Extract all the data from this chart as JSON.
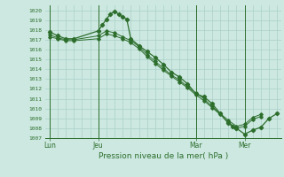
{
  "title": "Pression niveau de la mer( hPa )",
  "ylim": [
    1007,
    1020.5
  ],
  "yticks": [
    1007,
    1008,
    1009,
    1010,
    1011,
    1012,
    1013,
    1014,
    1015,
    1016,
    1017,
    1018,
    1019,
    1020
  ],
  "xtick_labels": [
    "Lun",
    "Jeu",
    "Mar",
    "Mer"
  ],
  "xtick_positions": [
    0,
    12,
    36,
    48
  ],
  "xlim": [
    -1,
    57
  ],
  "bg_color": "#cce8e0",
  "grid_color": "#aad0c8",
  "line_color": "#2d6e2d",
  "series1_x": [
    0,
    2,
    4,
    6,
    12,
    13,
    14,
    15,
    16,
    17,
    18,
    19,
    20,
    22,
    24,
    26,
    28,
    30,
    32,
    34,
    36,
    38,
    40,
    42,
    44,
    45,
    46,
    48,
    50,
    52,
    54,
    56
  ],
  "series1_y": [
    1017.8,
    1017.4,
    1017.1,
    1017.1,
    1017.9,
    1018.5,
    1019.1,
    1019.6,
    1019.9,
    1019.6,
    1019.3,
    1019.1,
    1017.1,
    1016.4,
    1015.8,
    1015.2,
    1014.5,
    1013.7,
    1013.2,
    1012.5,
    1011.5,
    1011.2,
    1010.5,
    1009.5,
    1008.5,
    1008.2,
    1008.0,
    1007.4,
    1007.8,
    1008.1,
    1009.0,
    1009.5
  ],
  "series2_x": [
    0,
    2,
    4,
    6,
    12,
    14,
    16,
    18,
    20,
    22,
    24,
    26,
    28,
    30,
    32,
    34,
    36,
    38,
    40,
    42,
    44,
    46,
    48,
    50,
    52
  ],
  "series2_y": [
    1017.5,
    1017.2,
    1017.0,
    1017.0,
    1017.4,
    1017.9,
    1017.7,
    1017.3,
    1016.9,
    1016.3,
    1015.5,
    1014.8,
    1014.1,
    1013.4,
    1012.9,
    1012.2,
    1011.6,
    1011.0,
    1010.2,
    1009.5,
    1008.8,
    1008.2,
    1008.4,
    1009.1,
    1009.4
  ],
  "series3_x": [
    0,
    2,
    4,
    6,
    12,
    14,
    16,
    18,
    20,
    22,
    24,
    26,
    28,
    30,
    32,
    34,
    36,
    38,
    40,
    42,
    44,
    46,
    48,
    50,
    52
  ],
  "series3_y": [
    1017.3,
    1017.1,
    1016.9,
    1016.9,
    1017.1,
    1017.6,
    1017.4,
    1017.1,
    1016.7,
    1016.1,
    1015.3,
    1014.6,
    1013.9,
    1013.3,
    1012.7,
    1012.1,
    1011.4,
    1010.8,
    1010.1,
    1009.4,
    1008.6,
    1008.0,
    1008.2,
    1008.9,
    1009.2
  ]
}
